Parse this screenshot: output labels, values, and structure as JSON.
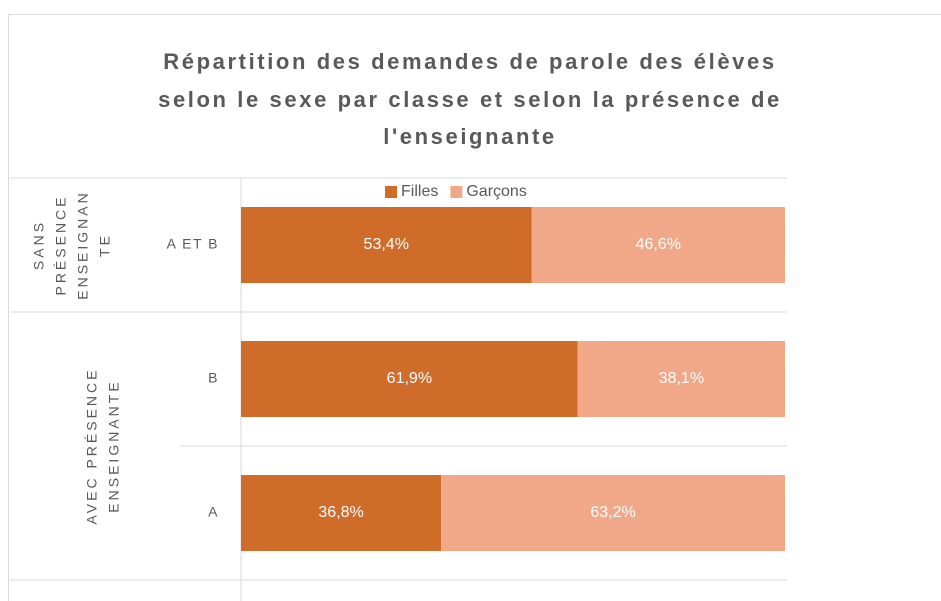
{
  "chart_data": {
    "type": "stacked_bar_100",
    "title": [
      "Répartition des demandes de parole des élèves",
      "selon le sexe par classe et selon la présence de",
      "l'enseignante"
    ],
    "groups": [
      {
        "label": [
          "SANS",
          "PRÉSENCE",
          "ENSEIGNAN",
          "TE"
        ],
        "categories": [
          "A ET B"
        ]
      },
      {
        "label": [
          "AVEC PRÉSENCE",
          "ENSEIGNANTE"
        ],
        "categories": [
          "B",
          "A"
        ]
      }
    ],
    "series": [
      {
        "name": "Filles",
        "color": "#d06c2a",
        "values": [
          53.4,
          61.9,
          36.8
        ],
        "value_labels": [
          "53,4%",
          "61,9%",
          "36,8%"
        ]
      },
      {
        "name": "Garçons",
        "color": "#f0a889",
        "values": [
          46.6,
          38.1,
          63.2
        ],
        "value_labels": [
          "46,6%",
          "38,1%",
          "63,2%"
        ]
      }
    ],
    "legend": "top"
  }
}
